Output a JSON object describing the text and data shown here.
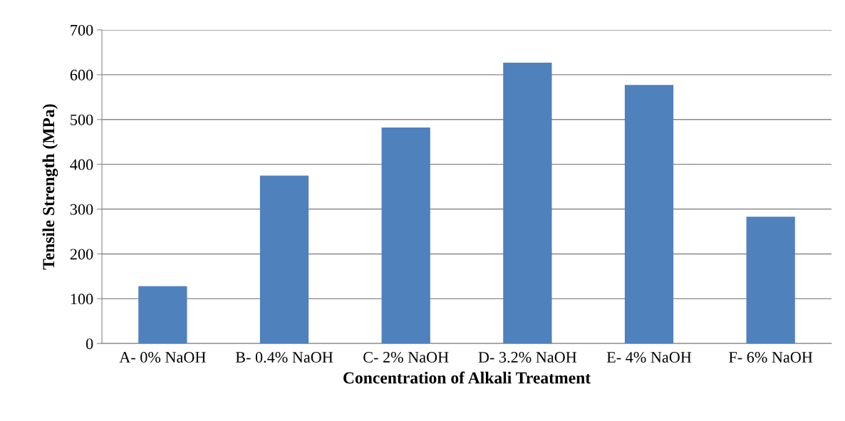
{
  "chart_data": {
    "type": "bar",
    "xlabel": "Concentration of Alkali Treatment",
    "ylabel": "Tensile Strength (MPa)",
    "categories": [
      "A- 0% NaOH",
      "B- 0.4% NaOH",
      "C- 2% NaOH",
      "D- 3.2% NaOH",
      "E- 4% NaOH",
      "F- 6% NaOH"
    ],
    "values": [
      128,
      375,
      482,
      627,
      577,
      283
    ],
    "color": "#4f81bd",
    "ylim": [
      0,
      700
    ],
    "yticks": [
      0,
      100,
      200,
      300,
      400,
      500,
      600,
      700
    ],
    "grid": "y",
    "legend": false
  }
}
